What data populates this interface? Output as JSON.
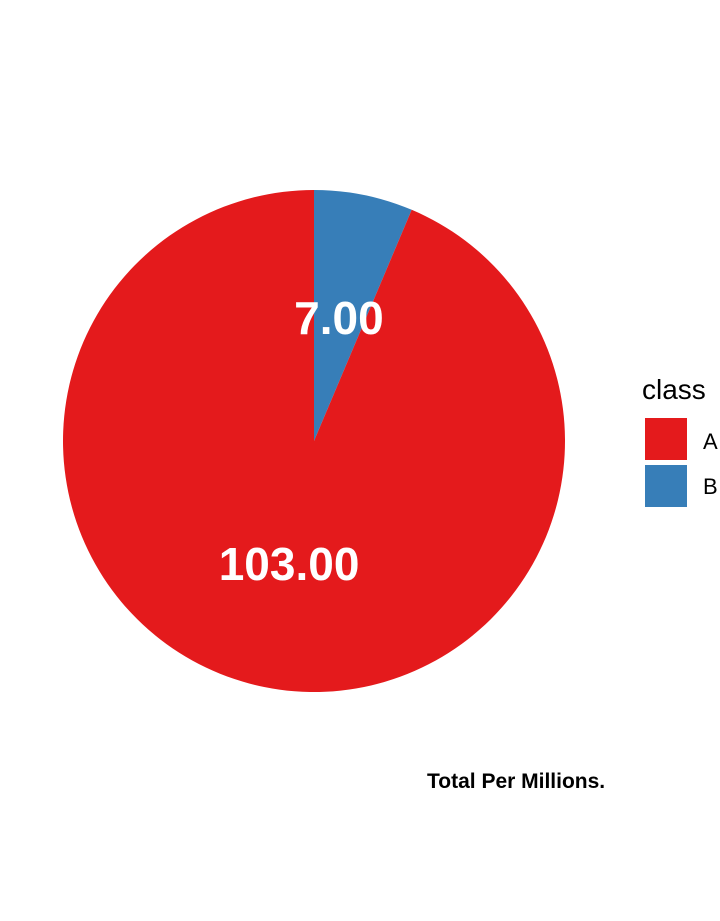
{
  "chart_data": {
    "type": "pie",
    "categories": [
      "A",
      "B"
    ],
    "values": [
      103.0,
      7.0
    ],
    "data_labels": [
      "103.00",
      "7.00"
    ],
    "colors": [
      "#E41A1C",
      "#377EB8"
    ],
    "legend": {
      "title": "class",
      "placement": "right",
      "entries": [
        "A",
        "B"
      ]
    },
    "caption": "Total Per Millions.",
    "start": "top",
    "direction": "clockwise",
    "order": [
      "B",
      "A"
    ]
  }
}
